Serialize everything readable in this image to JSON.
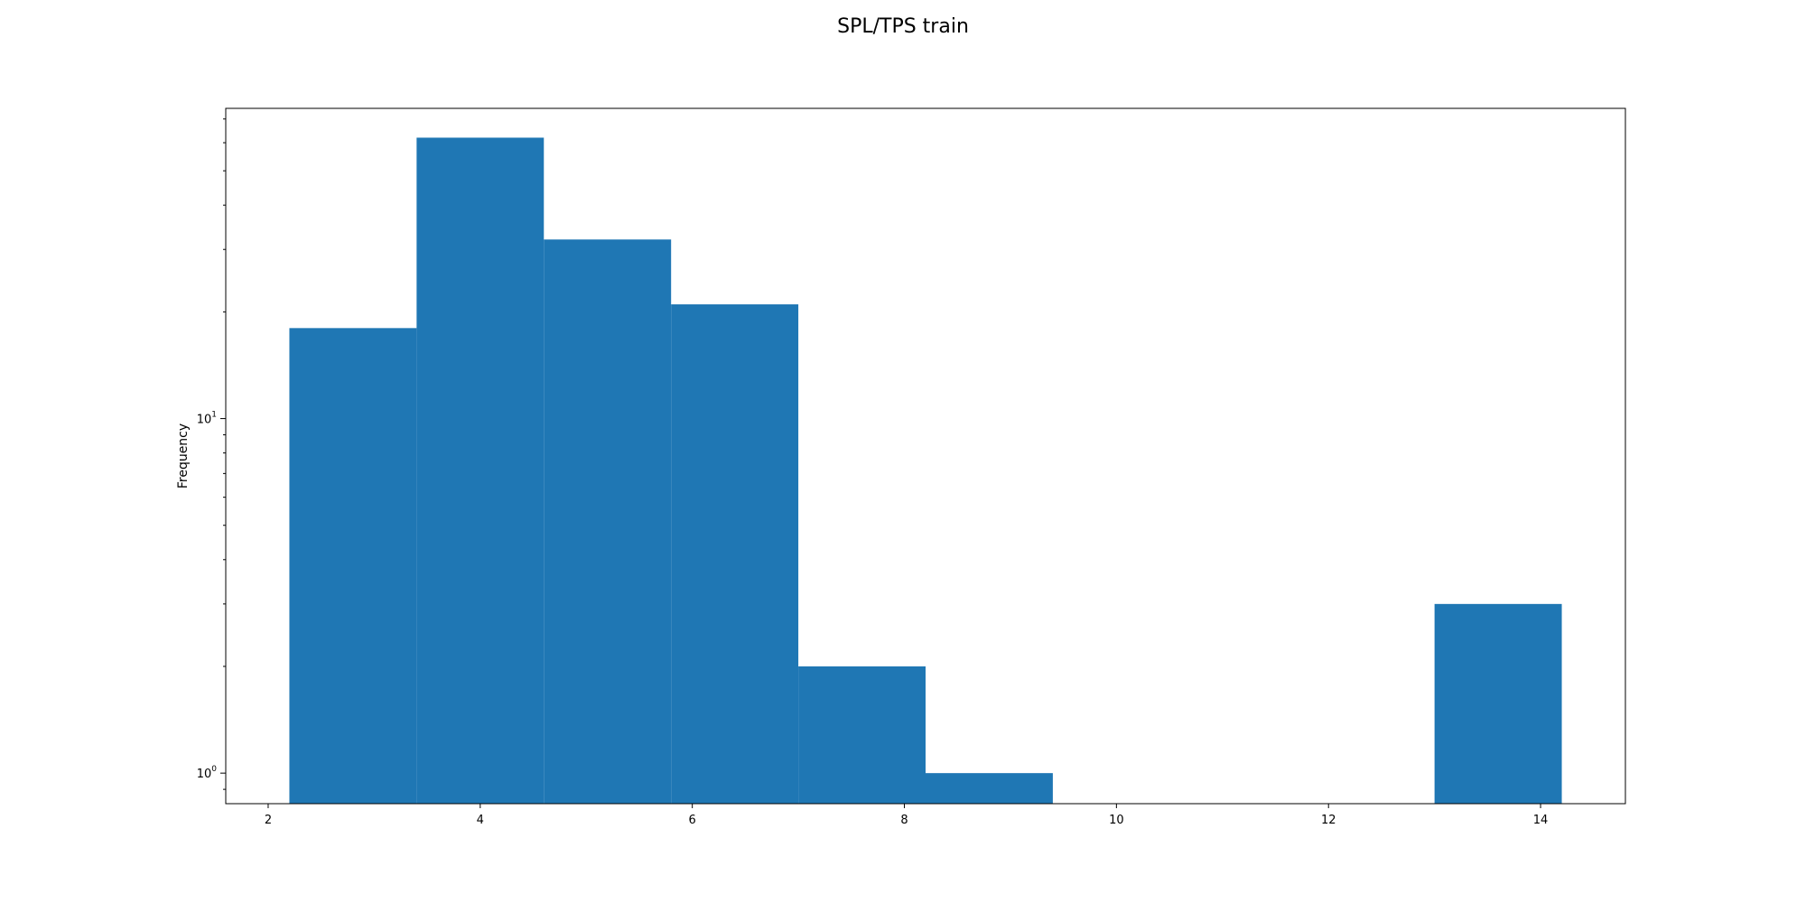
{
  "chart_data": {
    "type": "bar",
    "subtype": "histogram",
    "title": "SPL/TPS train",
    "xlabel": "",
    "ylabel": "Frequency",
    "yscale": "log",
    "xlim": [
      1.6,
      14.8
    ],
    "ylim": [
      0.82,
      75
    ],
    "bins": [
      {
        "x0": 2.2,
        "x1": 3.4,
        "count": 18
      },
      {
        "x0": 3.4,
        "x1": 4.6,
        "count": 62
      },
      {
        "x0": 4.6,
        "x1": 5.8,
        "count": 32
      },
      {
        "x0": 5.8,
        "x1": 7.0,
        "count": 21
      },
      {
        "x0": 7.0,
        "x1": 8.2,
        "count": 2
      },
      {
        "x0": 8.2,
        "x1": 9.4,
        "count": 1
      },
      {
        "x0": 9.4,
        "x1": 10.6,
        "count": 0
      },
      {
        "x0": 10.6,
        "x1": 11.8,
        "count": 0
      },
      {
        "x0": 11.8,
        "x1": 13.0,
        "count": 0
      },
      {
        "x0": 13.0,
        "x1": 14.2,
        "count": 3
      }
    ],
    "xticks": [
      2,
      4,
      6,
      8,
      10,
      12,
      14
    ],
    "xtick_labels": [
      "2",
      "4",
      "6",
      "8",
      "10",
      "12",
      "14"
    ],
    "yticks_major": [
      1,
      10
    ],
    "ytick_labels": [
      {
        "base": "10",
        "exp": "0"
      },
      {
        "base": "10",
        "exp": "1"
      }
    ],
    "bar_color": "#1f77b4",
    "grid": false
  }
}
